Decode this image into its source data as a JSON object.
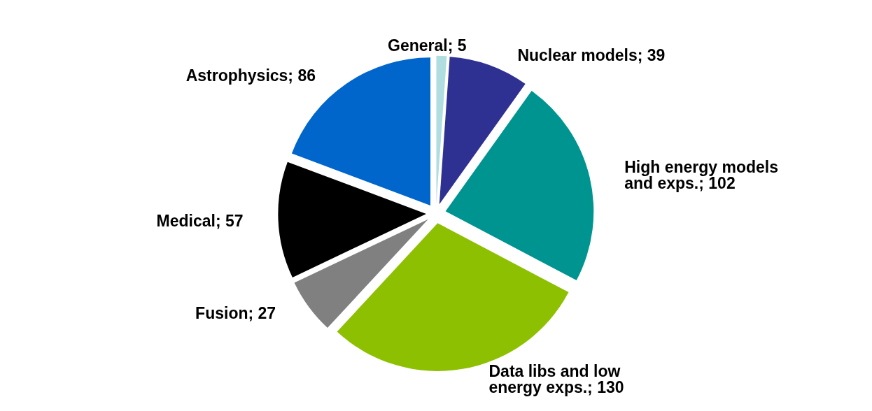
{
  "chart_data": {
    "type": "pie",
    "categories": [
      "General",
      "Nuclear models",
      "High energy models and exps.",
      "Data libs and low energy exps.",
      "Fusion",
      "Medical",
      "Astrophysics"
    ],
    "values": [
      5,
      39,
      102,
      130,
      27,
      57,
      86
    ],
    "colors": [
      "#b0dde0",
      "#2e3192",
      "#009490",
      "#8dc000",
      "#808080",
      "#000000",
      "#0066cc"
    ],
    "value_labels": [
      "; 5",
      "; 39",
      "; 102",
      "; 130",
      "; 27",
      "; 57",
      "; 86"
    ]
  }
}
